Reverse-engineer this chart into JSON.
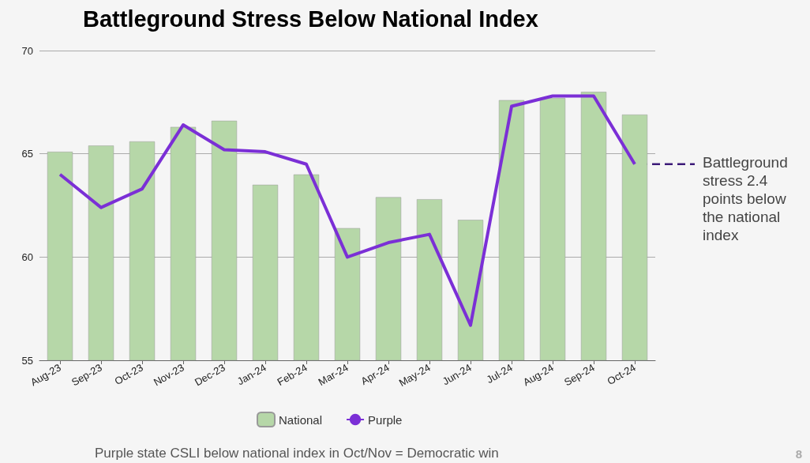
{
  "chart_data": {
    "type": "bar",
    "title": "Battleground Stress Below National Index",
    "categories": [
      "Aug-23",
      "Sep-23",
      "Oct-23",
      "Nov-23",
      "Dec-23",
      "Jan-24",
      "Feb-24",
      "Mar-24",
      "Apr-24",
      "May-24",
      "Jun-24",
      "Jul-24",
      "Aug-24",
      "Sep-24",
      "Oct-24"
    ],
    "series": [
      {
        "name": "National",
        "color": "#b6d7a8",
        "values": [
          65.1,
          65.4,
          65.6,
          66.3,
          66.6,
          63.5,
          64.0,
          61.4,
          62.9,
          62.8,
          61.8,
          67.6,
          67.7,
          68.0,
          66.9
        ]
      },
      {
        "name": "Purple",
        "type": "line",
        "color": "#7b2fd6",
        "values": [
          64.0,
          62.4,
          63.3,
          66.4,
          65.2,
          65.1,
          64.5,
          60.0,
          60.7,
          61.1,
          56.7,
          67.3,
          67.8,
          67.8,
          64.5
        ]
      }
    ],
    "ylim": [
      55,
      70
    ],
    "yticks": [
      55,
      60,
      65,
      70
    ],
    "grid": "y",
    "legend": "bottom",
    "marker": "none",
    "annotations": [
      {
        "text": "Battleground stress 2.4 points below the national index",
        "x": "Oct-24",
        "y": 64.5
      },
      "Purple state CSLI below national index in Oct/Nov = Democratic win",
      "8"
    ]
  }
}
